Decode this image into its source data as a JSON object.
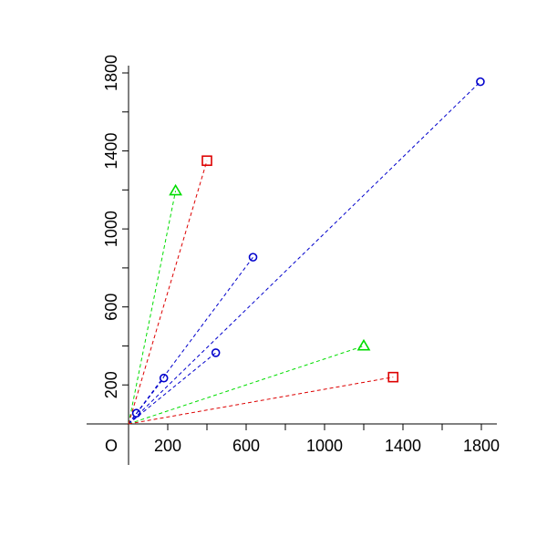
{
  "chart_data": {
    "type": "scatter",
    "title": "",
    "xlabel": "",
    "ylabel": "",
    "origin_label": "O",
    "xlim": [
      0,
      1800
    ],
    "ylim": [
      0,
      1800
    ],
    "x_ticks": [
      {
        "value": 200,
        "label": "200"
      },
      {
        "value": 600,
        "label": "600"
      },
      {
        "value": 1000,
        "label": "1000"
      },
      {
        "value": 1400,
        "label": "1400"
      },
      {
        "value": 1800,
        "label": "1800"
      }
    ],
    "y_ticks": [
      {
        "value": 200,
        "label": "200"
      },
      {
        "value": 600,
        "label": "600"
      },
      {
        "value": 1000,
        "label": "1000"
      },
      {
        "value": 1400,
        "label": "1400"
      },
      {
        "value": 1800,
        "label": "1800"
      }
    ],
    "minor_tick_values": [
      400,
      800,
      1200,
      1600
    ],
    "grid": false,
    "series": [
      {
        "marker": "circle",
        "color": "#0000cc",
        "points": [
          {
            "x": 40,
            "y": 55
          },
          {
            "x": 180,
            "y": 235
          },
          {
            "x": 445,
            "y": 365
          },
          {
            "x": 635,
            "y": 855
          },
          {
            "x": 1795,
            "y": 1755
          }
        ]
      },
      {
        "marker": "triangle",
        "color": "#00dd00",
        "points": [
          {
            "x": 240,
            "y": 1195
          },
          {
            "x": 1200,
            "y": 400
          }
        ]
      },
      {
        "marker": "square",
        "color": "#dd0000",
        "points": [
          {
            "x": 400,
            "y": 1350
          },
          {
            "x": 1350,
            "y": 240
          }
        ]
      }
    ]
  }
}
